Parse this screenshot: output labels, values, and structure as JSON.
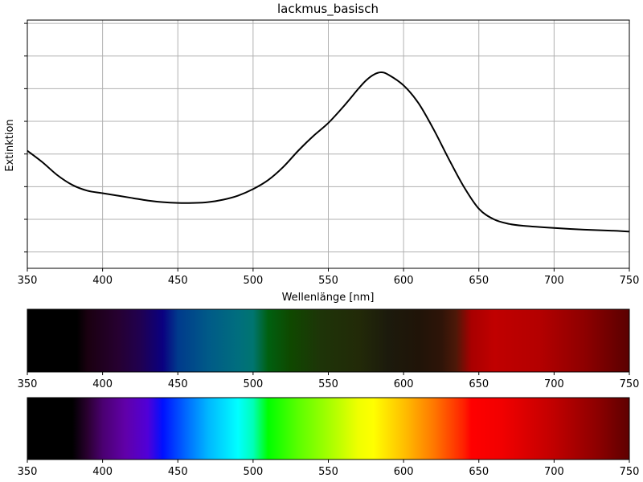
{
  "chart_data": [
    {
      "type": "line",
      "title": "lackmus_basisch",
      "xlabel": "Wellenlänge [nm]",
      "ylabel": "Extinktion",
      "xlim": [
        350,
        750
      ],
      "ylim": [
        0.1,
        1.62
      ],
      "xticks": [
        350,
        400,
        450,
        500,
        550,
        600,
        650,
        700,
        750
      ],
      "yticks": [
        0.2,
        0.4,
        0.6,
        0.8,
        1.0,
        1.2,
        1.4,
        1.6
      ],
      "ytick_labels_shown": false,
      "grid": true,
      "line_color": "#000000",
      "series": [
        {
          "x": [
            350,
            360,
            370,
            380,
            390,
            400,
            410,
            420,
            430,
            440,
            450,
            460,
            470,
            480,
            490,
            500,
            510,
            520,
            530,
            540,
            550,
            560,
            570,
            575,
            580,
            585,
            590,
            600,
            610,
            620,
            630,
            640,
            650,
            660,
            670,
            680,
            700,
            720,
            740,
            750
          ],
          "y": [
            0.82,
            0.75,
            0.67,
            0.61,
            0.575,
            0.56,
            0.545,
            0.53,
            0.515,
            0.505,
            0.5,
            0.5,
            0.505,
            0.52,
            0.545,
            0.585,
            0.64,
            0.72,
            0.82,
            0.91,
            0.99,
            1.09,
            1.2,
            1.25,
            1.285,
            1.3,
            1.285,
            1.22,
            1.11,
            0.95,
            0.77,
            0.6,
            0.465,
            0.4,
            0.372,
            0.36,
            0.347,
            0.337,
            0.33,
            0.325
          ]
        }
      ]
    },
    {
      "type": "heatmap",
      "title": "",
      "xlim": [
        350,
        750
      ],
      "xticks": [
        350,
        400,
        450,
        500,
        550,
        600,
        650,
        700,
        750
      ],
      "gradient": [
        {
          "x": 350,
          "color": "#000000"
        },
        {
          "x": 383,
          "color": "#000000"
        },
        {
          "x": 390,
          "color": "#1a0010"
        },
        {
          "x": 410,
          "color": "#260030"
        },
        {
          "x": 425,
          "color": "#200050"
        },
        {
          "x": 440,
          "color": "#0a0080"
        },
        {
          "x": 450,
          "color": "#003a8c"
        },
        {
          "x": 470,
          "color": "#005a88"
        },
        {
          "x": 490,
          "color": "#006e7e"
        },
        {
          "x": 500,
          "color": "#007570"
        },
        {
          "x": 510,
          "color": "#006010"
        },
        {
          "x": 525,
          "color": "#0f4800"
        },
        {
          "x": 545,
          "color": "#1e3408"
        },
        {
          "x": 570,
          "color": "#222a08"
        },
        {
          "x": 590,
          "color": "#1c1a0c"
        },
        {
          "x": 610,
          "color": "#201408"
        },
        {
          "x": 625,
          "color": "#2e1408"
        },
        {
          "x": 635,
          "color": "#4e1808"
        },
        {
          "x": 645,
          "color": "#a80000"
        },
        {
          "x": 660,
          "color": "#c00000"
        },
        {
          "x": 690,
          "color": "#b40000"
        },
        {
          "x": 720,
          "color": "#8e0000"
        },
        {
          "x": 750,
          "color": "#5a0000"
        }
      ]
    },
    {
      "type": "heatmap",
      "title": "",
      "xlim": [
        350,
        750
      ],
      "xticks": [
        350,
        400,
        450,
        500,
        550,
        600,
        650,
        700,
        750
      ],
      "gradient": [
        {
          "x": 350,
          "color": "#000000"
        },
        {
          "x": 380,
          "color": "#000000"
        },
        {
          "x": 390,
          "color": "#2a0030"
        },
        {
          "x": 400,
          "color": "#4a0070"
        },
        {
          "x": 415,
          "color": "#6100a8"
        },
        {
          "x": 430,
          "color": "#5000d8"
        },
        {
          "x": 440,
          "color": "#0010ff"
        },
        {
          "x": 455,
          "color": "#0066ff"
        },
        {
          "x": 470,
          "color": "#00b6ff"
        },
        {
          "x": 490,
          "color": "#00ffff"
        },
        {
          "x": 500,
          "color": "#00ffb8"
        },
        {
          "x": 510,
          "color": "#00ff00"
        },
        {
          "x": 530,
          "color": "#5aff00"
        },
        {
          "x": 550,
          "color": "#a4ff00"
        },
        {
          "x": 570,
          "color": "#f0ff00"
        },
        {
          "x": 580,
          "color": "#ffff00"
        },
        {
          "x": 600,
          "color": "#ffc000"
        },
        {
          "x": 620,
          "color": "#ff7800"
        },
        {
          "x": 640,
          "color": "#ff2000"
        },
        {
          "x": 645,
          "color": "#ff0000"
        },
        {
          "x": 665,
          "color": "#f20000"
        },
        {
          "x": 700,
          "color": "#c00000"
        },
        {
          "x": 730,
          "color": "#8a0000"
        },
        {
          "x": 750,
          "color": "#5e0000"
        }
      ]
    }
  ]
}
